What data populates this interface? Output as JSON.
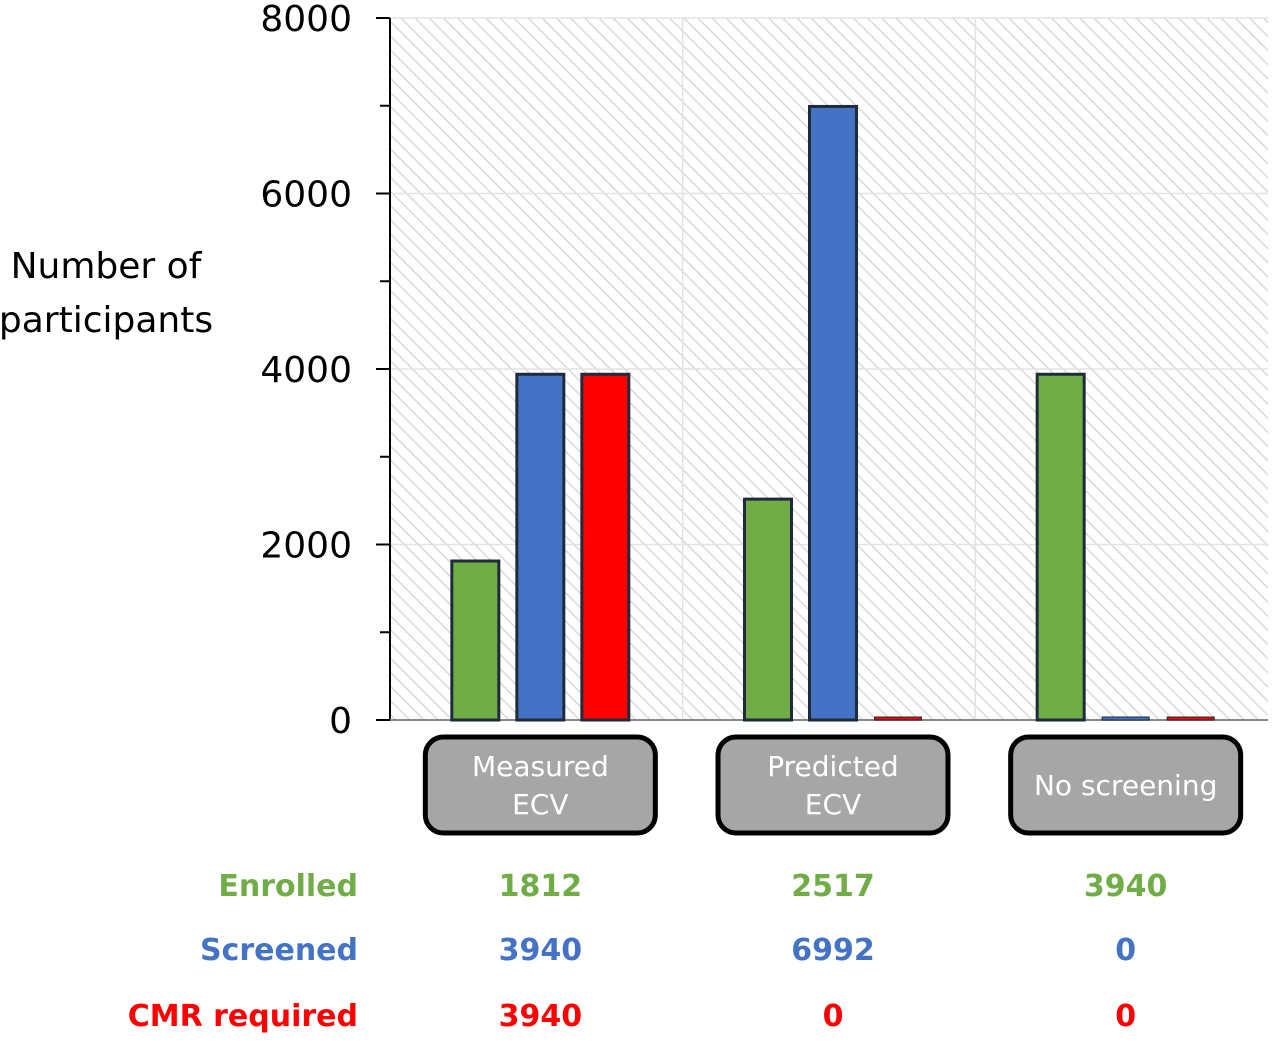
{
  "chart_data": {
    "type": "bar",
    "ylabel": [
      "Number of",
      "participants"
    ],
    "ylim": [
      0,
      8000
    ],
    "yticks": [
      0,
      2000,
      4000,
      6000,
      8000
    ],
    "grid": true,
    "categories": [
      [
        "Measured",
        "ECV"
      ],
      [
        "Predicted",
        "ECV"
      ],
      [
        "No screening"
      ]
    ],
    "series": [
      {
        "name": "Enrolled",
        "color": "#70ad47",
        "values": [
          1812,
          2517,
          3940
        ],
        "labels": [
          "1812",
          "2517",
          "3940"
        ]
      },
      {
        "name": "Screened",
        "color": "#4472c4",
        "values": [
          3940,
          6992,
          0
        ],
        "labels": [
          "3940",
          "6992",
          "0"
        ]
      },
      {
        "name": "CMR required",
        "color": "#ff0000",
        "values": [
          3940,
          0,
          0
        ],
        "labels": [
          "3940",
          "0",
          "0"
        ]
      }
    ]
  }
}
